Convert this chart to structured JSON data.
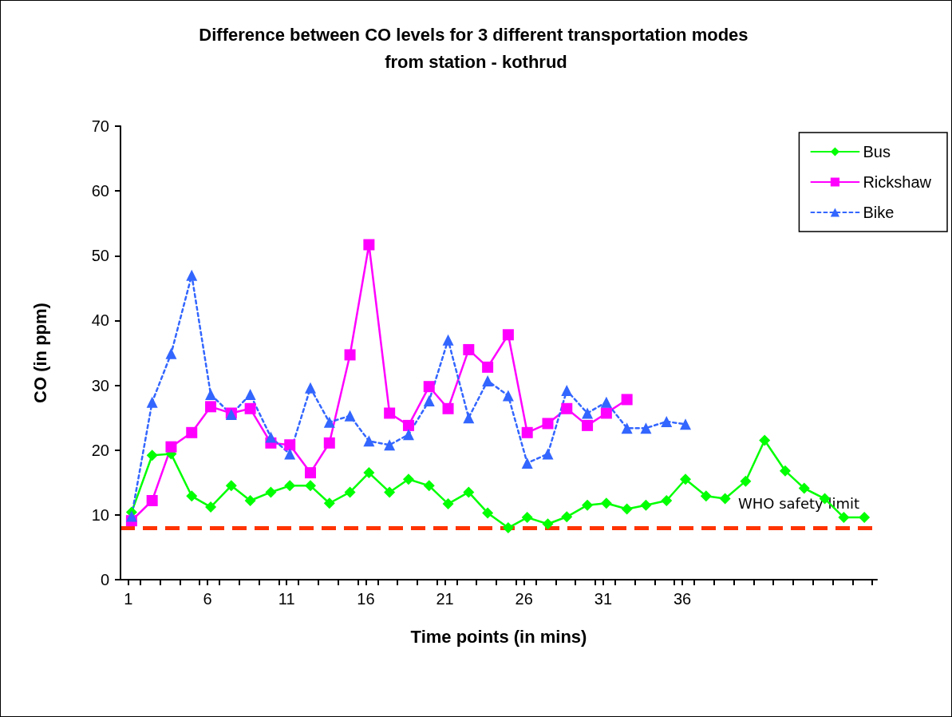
{
  "chart_data": {
    "type": "line",
    "title": "Difference between CO levels for 3 different transportation modes from station - kothrud",
    "xlabel": "Time points (in mins)",
    "ylabel": "CO (in ppm)",
    "x": [
      1.2,
      2.5,
      3.7,
      5.0,
      6.2,
      7.5,
      8.7,
      10.0,
      11.2,
      12.5,
      13.7,
      15.0,
      16.2,
      17.5,
      18.7,
      20.0,
      21.2,
      22.5,
      23.7,
      25.0,
      26.2,
      27.5,
      28.7,
      30.0,
      31.2,
      32.5,
      33.7,
      35.0,
      36.2,
      37.5,
      38.7,
      40.0,
      41.2,
      42.5,
      43.7,
      45.0,
      46.2,
      47.5
    ],
    "xlim": [
      0.5,
      48.3
    ],
    "xticks": [
      1,
      6,
      11,
      16,
      21,
      26,
      31,
      36,
      {
        "value": 1.75,
        "label": null
      },
      {
        "value": 3.0,
        "label": null
      },
      {
        "value": 4.25,
        "label": null
      },
      {
        "value": 5.5,
        "label": null
      },
      {
        "value": 6.75,
        "label": null
      },
      {
        "value": 8.0,
        "label": null
      },
      {
        "value": 9.25,
        "label": null
      },
      {
        "value": 10.5,
        "label": null
      },
      {
        "value": 11.75,
        "label": null
      },
      {
        "value": 13.0,
        "label": null
      },
      {
        "value": 14.25,
        "label": null
      },
      {
        "value": 15.5,
        "label": null
      },
      {
        "value": 16.75,
        "label": null
      },
      {
        "value": 18.0,
        "label": null
      },
      {
        "value": 19.25,
        "label": null
      },
      {
        "value": 20.5,
        "label": null
      },
      {
        "value": 21.75,
        "label": null
      },
      {
        "value": 23.0,
        "label": null
      },
      {
        "value": 24.25,
        "label": null
      },
      {
        "value": 25.5,
        "label": null
      },
      {
        "value": 26.75,
        "label": null
      },
      {
        "value": 28.0,
        "label": null
      },
      {
        "value": 29.25,
        "label": null
      },
      {
        "value": 30.5,
        "label": null
      },
      {
        "value": 31.75,
        "label": null
      },
      {
        "value": 33.0,
        "label": null
      },
      {
        "value": 34.25,
        "label": null
      },
      {
        "value": 35.5,
        "label": null
      },
      {
        "value": 36.75,
        "label": null
      },
      {
        "value": 38.0,
        "label": null
      },
      {
        "value": 39.25,
        "label": null
      },
      {
        "value": 40.5,
        "label": null
      },
      {
        "value": 41.75,
        "label": null
      },
      {
        "value": 43.0,
        "label": null
      },
      {
        "value": 44.25,
        "label": null
      },
      {
        "value": 45.5,
        "label": null
      },
      {
        "value": 46.75,
        "label": null
      },
      {
        "value": 48.0,
        "label": null
      }
    ],
    "series": [
      {
        "name": "Bus",
        "color": "#00ff00",
        "marker": "diamond",
        "line_style": "solid",
        "values": [
          10.4,
          19.2,
          19.4,
          12.9,
          11.2,
          14.5,
          12.2,
          13.5,
          14.5,
          14.5,
          11.8,
          13.5,
          16.5,
          13.5,
          15.5,
          14.5,
          11.7,
          13.5,
          10.3,
          8.0,
          9.6,
          8.6,
          9.7,
          11.5,
          11.8,
          10.9,
          11.5,
          12.2,
          15.5,
          12.9,
          12.5,
          15.2,
          21.5,
          16.8,
          14.1,
          12.5,
          9.6,
          9.6
        ]
      },
      {
        "name": "Rickshaw",
        "color": "#ff00ff",
        "marker": "square",
        "line_style": "solid",
        "values": [
          9.1,
          12.2,
          20.5,
          22.7,
          26.7,
          25.7,
          26.4,
          21.1,
          20.8,
          16.5,
          21.1,
          34.7,
          51.7,
          25.7,
          23.8,
          29.8,
          26.4,
          35.5,
          32.8,
          37.8,
          22.7,
          24.1,
          26.4,
          23.8,
          25.7,
          27.8,
          null,
          null,
          null,
          null,
          null,
          null,
          null,
          null,
          null,
          null,
          null,
          null
        ]
      },
      {
        "name": "Bike",
        "color": "#3366ff",
        "marker": "triangle",
        "line_style": "dashed",
        "values": [
          9.8,
          27.4,
          34.9,
          47.0,
          28.6,
          25.5,
          28.6,
          22.0,
          19.4,
          29.6,
          24.3,
          25.3,
          21.4,
          20.8,
          22.4,
          27.6,
          37.0,
          25.0,
          30.7,
          28.4,
          18.0,
          19.4,
          29.2,
          25.7,
          27.4,
          23.4,
          23.4,
          24.4,
          24.0,
          null,
          null,
          null,
          null,
          null,
          null,
          null,
          null,
          null
        ]
      }
    ],
    "ylim": [
      0,
      70
    ],
    "yticks": [
      0,
      10,
      20,
      30,
      40,
      50,
      60,
      70
    ],
    "grid": false,
    "legend": "top right",
    "ref_lines": [
      {
        "axis": "y",
        "value": 8.0,
        "label": "WHO safety limit",
        "color": "#ff3300",
        "line_style": "dashed"
      }
    ]
  }
}
